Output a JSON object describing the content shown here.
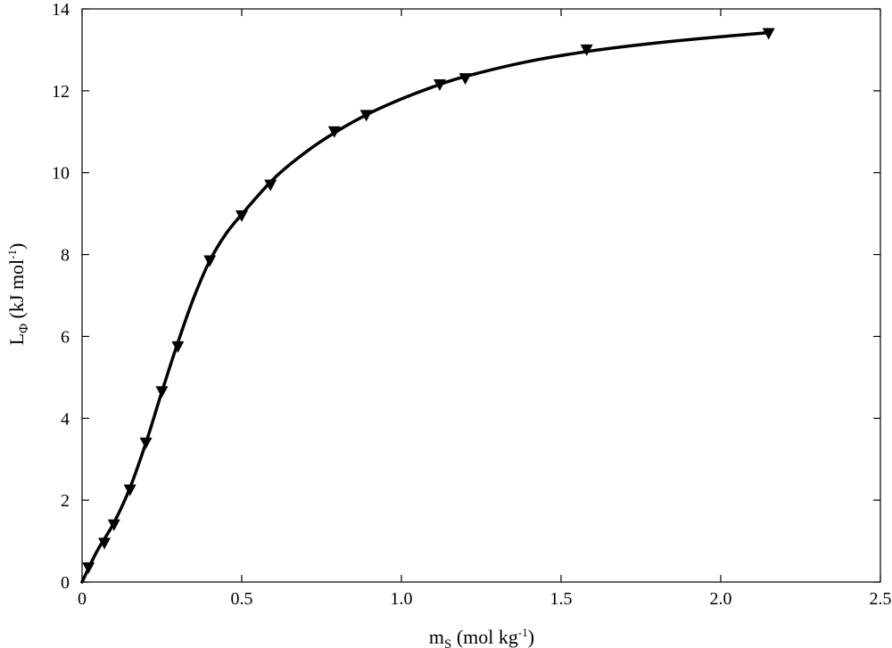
{
  "chart_data": {
    "type": "scatter",
    "xlabel": {
      "main": "m",
      "sub": "S",
      "unit_pre": " (mol kg",
      "unit_sup": "-1",
      "unit_post": ")"
    },
    "ylabel": {
      "main": "L",
      "sub": "Φ",
      "unit_pre": " (kJ mol",
      "unit_sup": "-1",
      "unit_post": ")"
    },
    "xlim": [
      0,
      2.5
    ],
    "ylim": [
      0,
      14
    ],
    "x_ticks": [
      0,
      0.5,
      1.0,
      1.5,
      2.0,
      2.5
    ],
    "x_tick_labels": [
      "0",
      "0.5",
      "1.0",
      "1.5",
      "2.0",
      "2.5"
    ],
    "y_ticks": [
      0,
      2,
      4,
      6,
      8,
      10,
      12,
      14
    ],
    "y_tick_labels": [
      "0",
      "2",
      "4",
      "6",
      "8",
      "10",
      "12",
      "14"
    ],
    "grid": false,
    "series": [
      {
        "kind": "markers",
        "marker": "triangle-down",
        "x": [
          0.02,
          0.07,
          0.1,
          0.15,
          0.2,
          0.25,
          0.3,
          0.4,
          0.5,
          0.59,
          0.79,
          0.89,
          1.12,
          1.2,
          1.58,
          2.15
        ],
        "y": [
          0.35,
          0.95,
          1.4,
          2.25,
          3.4,
          4.65,
          5.75,
          7.85,
          8.95,
          9.7,
          11.0,
          11.4,
          12.15,
          12.3,
          13.0,
          13.4
        ]
      },
      {
        "kind": "line",
        "x": [
          0,
          0.02,
          0.05,
          0.1,
          0.15,
          0.2,
          0.25,
          0.3,
          0.35,
          0.4,
          0.45,
          0.5,
          0.6,
          0.7,
          0.8,
          0.9,
          1.0,
          1.1,
          1.2,
          1.4,
          1.6,
          1.8,
          2.0,
          2.15
        ],
        "y": [
          0,
          0.33,
          0.8,
          1.45,
          2.3,
          3.4,
          4.65,
          5.85,
          6.95,
          7.85,
          8.5,
          8.98,
          9.85,
          10.5,
          11.02,
          11.45,
          11.8,
          12.1,
          12.35,
          12.72,
          12.98,
          13.17,
          13.32,
          13.42
        ]
      }
    ]
  }
}
